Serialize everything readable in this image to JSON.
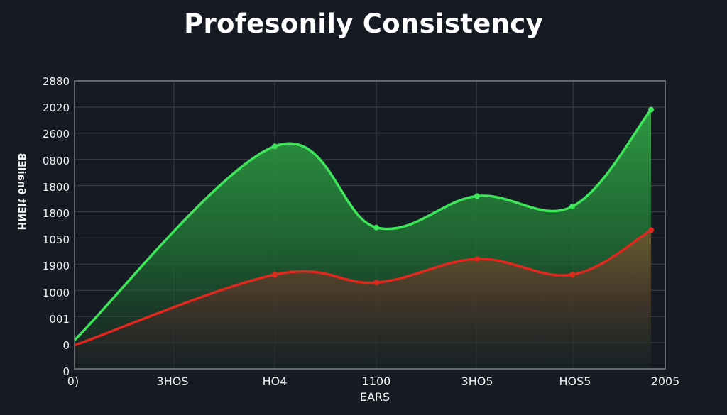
{
  "title": "Profesonily Consistency",
  "chart_data": {
    "type": "area",
    "title": "Profesonily Consistency",
    "xlabel": "EARS",
    "ylabel": "HNEIt 6nailEB",
    "y_tick_labels": [
      "2880",
      "2020",
      "2600",
      "0800",
      "1800",
      "1800",
      "1050",
      "1900",
      "1000",
      "001",
      "0",
      "0"
    ],
    "x_tick_labels": [
      "0)",
      "3HOS",
      "HO4",
      "1100",
      "3HO5",
      "HOS5",
      "2005"
    ],
    "y_scale_note": "values expressed in gridline units (0 = x-axis, 11 = top gridline) because tick labels are non-monotonic",
    "ylim": [
      0,
      11
    ],
    "grid": true,
    "legend": null,
    "x_positions": [
      0,
      2,
      3,
      4,
      5,
      5.8
    ],
    "series": [
      {
        "name": "green",
        "color": "#3ee65a",
        "values": [
          1.1,
          8.5,
          5.4,
          6.6,
          6.2,
          9.9
        ]
      },
      {
        "name": "red",
        "color": "#e0281e",
        "values": [
          0.9,
          3.6,
          3.3,
          4.2,
          3.6,
          5.3
        ]
      }
    ]
  },
  "colors": {
    "background": "#161a23",
    "grid": "#3a3d48",
    "frame": "#8a8d96",
    "green": "#3ee65a",
    "red": "#e0281e"
  }
}
